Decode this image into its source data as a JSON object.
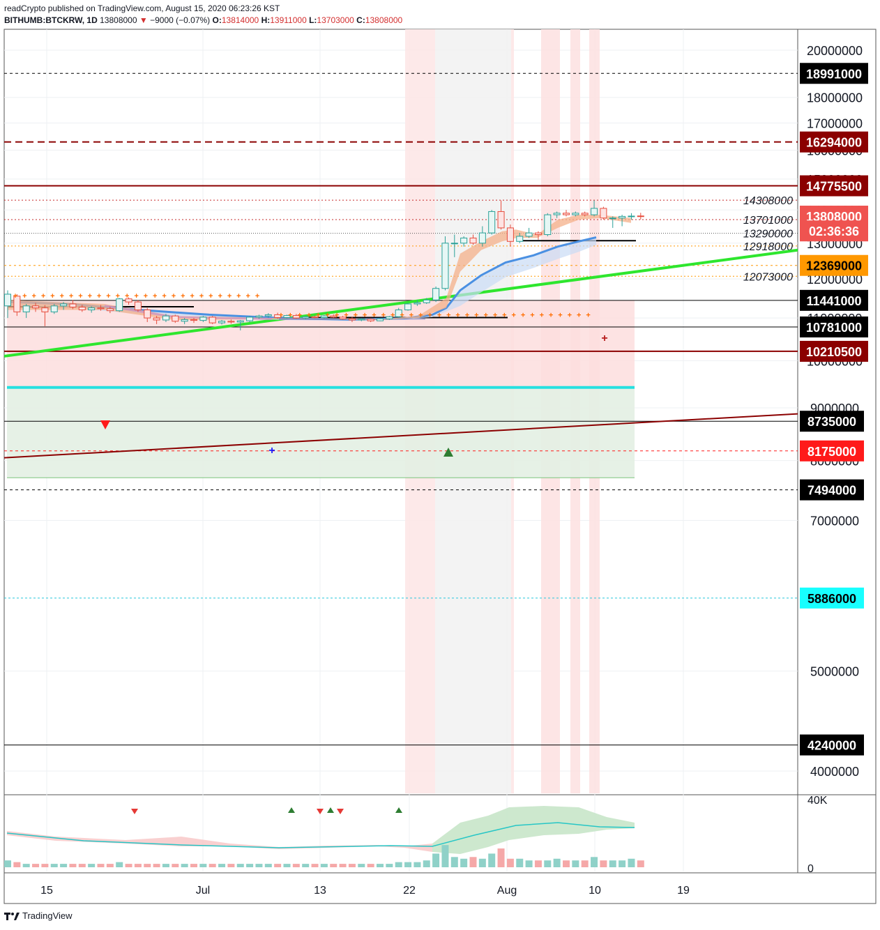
{
  "header": {
    "line1": "readCrypto published on TradingView.com, August 15, 2020 06:23:26 KST",
    "symbol": "BITHUMB:BTCKRW, 1D",
    "last": "13808000",
    "change": "−9000 (−0.07%)",
    "o_label": "O:",
    "o": "13814000",
    "h_label": "H:",
    "h": "13911000",
    "l_label": "L:",
    "l": "13703000",
    "c_label": "C:",
    "c": "13808000"
  },
  "footer": {
    "brand": "TradingView"
  },
  "colors": {
    "up": "#26a69a",
    "down": "#ef5350",
    "green_line": "#2ee62e",
    "dark_red": "#8b0000",
    "cyan": "#26e0e0",
    "orange": "#ff9800",
    "blue": "#4a90e2",
    "black": "#000000"
  },
  "chart_data": {
    "type": "candlestick",
    "x_ticks": [
      "15",
      "Jul",
      "13",
      "22",
      "Aug",
      "10",
      "19"
    ],
    "y_ticks": [
      "20000000",
      "18000000",
      "17000000",
      "16000000",
      "15000000",
      "14000000",
      "13000000",
      "12000000",
      "11000000",
      "10000000",
      "9000000",
      "8000000",
      "7000000",
      "5000000",
      "4000000"
    ],
    "ylim": [
      3500000,
      20500000
    ],
    "price_labels": [
      {
        "value": 18991000,
        "text": "18991000",
        "bg": "#000000",
        "fg": "#ffffff",
        "line": "dashed-black"
      },
      {
        "value": 16294000,
        "text": "16294000",
        "bg": "#8b0000",
        "fg": "#ffffff",
        "line": "dashed-darkred"
      },
      {
        "value": 14775500,
        "text": "14775500",
        "bg": "#8b0000",
        "fg": "#ffffff",
        "line": "solid-darkred"
      },
      {
        "value": 13808000,
        "text": "13808000",
        "bg": "#ef5350",
        "fg": "#ffffff",
        "line": "none"
      },
      {
        "value": 13360000,
        "text": "02:36:36",
        "bg": "#ef5350",
        "fg": "#ffffff",
        "line": "none"
      },
      {
        "value": 12369000,
        "text": "12369000",
        "bg": "#ff9800",
        "fg": "#000000",
        "line": "dashed-orange"
      },
      {
        "value": 11441000,
        "text": "11441000",
        "bg": "#000000",
        "fg": "#ffffff",
        "line": "solid-black"
      },
      {
        "value": 10781000,
        "text": "10781000",
        "bg": "#000000",
        "fg": "#ffffff",
        "line": "solid-black"
      },
      {
        "value": 10210500,
        "text": "10210500",
        "bg": "#8b0000",
        "fg": "#ffffff",
        "line": "solid-darkred"
      },
      {
        "value": 8735000,
        "text": "8735000",
        "bg": "#000000",
        "fg": "#ffffff",
        "line": "solid-black"
      },
      {
        "value": 8175000,
        "text": "8175000",
        "bg": "#ff1a1a",
        "fg": "#ffffff",
        "line": "dashed-red"
      },
      {
        "value": 7494000,
        "text": "7494000",
        "bg": "#000000",
        "fg": "#ffffff",
        "line": "dashed-black"
      },
      {
        "value": 5886000,
        "text": "5886000",
        "bg": "#18ffff",
        "fg": "#000000",
        "line": "dashed-cyan"
      },
      {
        "value": 4240000,
        "text": "4240000",
        "bg": "#000000",
        "fg": "#ffffff",
        "line": "solid-black"
      }
    ],
    "annotations": [
      {
        "value": 14308000,
        "text": "14308000"
      },
      {
        "value": 13701000,
        "text": "13701000"
      },
      {
        "value": 13290000,
        "text": "13290000"
      },
      {
        "value": 12918000,
        "text": "12918000"
      },
      {
        "value": 12073000,
        "text": "12073000"
      }
    ],
    "volume_axis": [
      "40K",
      "0"
    ],
    "candles": [
      {
        "o": 11300000,
        "h": 11700000,
        "l": 11000000,
        "c": 11600000
      },
      {
        "o": 11550000,
        "h": 11600000,
        "l": 11050000,
        "c": 11150000
      },
      {
        "o": 11150000,
        "h": 11350000,
        "l": 11000000,
        "c": 11300000
      },
      {
        "o": 11300000,
        "h": 11380000,
        "l": 11150000,
        "c": 11250000
      },
      {
        "o": 11250000,
        "h": 11320000,
        "l": 10800000,
        "c": 11150000
      },
      {
        "o": 11150000,
        "h": 11350000,
        "l": 11100000,
        "c": 11300000
      },
      {
        "o": 11300000,
        "h": 11400000,
        "l": 11200000,
        "c": 11350000
      },
      {
        "o": 11350000,
        "h": 11450000,
        "l": 11220000,
        "c": 11270000
      },
      {
        "o": 11270000,
        "h": 11330000,
        "l": 11150000,
        "c": 11200000
      },
      {
        "o": 11200000,
        "h": 11290000,
        "l": 11130000,
        "c": 11250000
      },
      {
        "o": 11250000,
        "h": 11320000,
        "l": 11180000,
        "c": 11230000
      },
      {
        "o": 11230000,
        "h": 11280000,
        "l": 11120000,
        "c": 11180000
      },
      {
        "o": 11180000,
        "h": 11500000,
        "l": 11150000,
        "c": 11480000
      },
      {
        "o": 11480000,
        "h": 11520000,
        "l": 11330000,
        "c": 11400000
      },
      {
        "o": 11400000,
        "h": 11450000,
        "l": 11150000,
        "c": 11200000
      },
      {
        "o": 11200000,
        "h": 11250000,
        "l": 10900000,
        "c": 11000000
      },
      {
        "o": 11000000,
        "h": 11050000,
        "l": 10850000,
        "c": 10950000
      },
      {
        "o": 10950000,
        "h": 11100000,
        "l": 10900000,
        "c": 11050000
      },
      {
        "o": 11050000,
        "h": 11080000,
        "l": 10880000,
        "c": 10920000
      },
      {
        "o": 10920000,
        "h": 11000000,
        "l": 10850000,
        "c": 10960000
      },
      {
        "o": 10960000,
        "h": 11000000,
        "l": 10880000,
        "c": 10940000
      },
      {
        "o": 10940000,
        "h": 11050000,
        "l": 10900000,
        "c": 11020000
      },
      {
        "o": 11020000,
        "h": 11050000,
        "l": 10850000,
        "c": 10880000
      },
      {
        "o": 10880000,
        "h": 10950000,
        "l": 10840000,
        "c": 10920000
      },
      {
        "o": 10920000,
        "h": 10960000,
        "l": 10860000,
        "c": 10900000
      },
      {
        "o": 10900000,
        "h": 10950000,
        "l": 10700000,
        "c": 10930000
      },
      {
        "o": 10930000,
        "h": 11050000,
        "l": 10900000,
        "c": 11020000
      },
      {
        "o": 11020000,
        "h": 11080000,
        "l": 10980000,
        "c": 11050000
      },
      {
        "o": 11050000,
        "h": 11120000,
        "l": 11000000,
        "c": 11080000
      },
      {
        "o": 11080000,
        "h": 11130000,
        "l": 10980000,
        "c": 11010000
      },
      {
        "o": 11010000,
        "h": 11080000,
        "l": 10990000,
        "c": 11060000
      },
      {
        "o": 11060000,
        "h": 11100000,
        "l": 10980000,
        "c": 11000000
      },
      {
        "o": 11000000,
        "h": 11050000,
        "l": 10970000,
        "c": 11030000
      },
      {
        "o": 11030000,
        "h": 11060000,
        "l": 10990000,
        "c": 11010000
      },
      {
        "o": 11010000,
        "h": 11070000,
        "l": 10980000,
        "c": 11050000
      },
      {
        "o": 11050000,
        "h": 11090000,
        "l": 11000000,
        "c": 11020000
      },
      {
        "o": 11020000,
        "h": 11050000,
        "l": 10950000,
        "c": 10980000
      },
      {
        "o": 10980000,
        "h": 11030000,
        "l": 10900000,
        "c": 10950000
      },
      {
        "o": 10950000,
        "h": 11000000,
        "l": 10920000,
        "c": 10970000
      },
      {
        "o": 10970000,
        "h": 11000000,
        "l": 10900000,
        "c": 10930000
      },
      {
        "o": 10930000,
        "h": 11000000,
        "l": 10920000,
        "c": 10980000
      },
      {
        "o": 10980000,
        "h": 11050000,
        "l": 10950000,
        "c": 11030000
      },
      {
        "o": 11030000,
        "h": 11250000,
        "l": 11000000,
        "c": 11200000
      },
      {
        "o": 11200000,
        "h": 11380000,
        "l": 11180000,
        "c": 11350000
      },
      {
        "o": 11350000,
        "h": 11450000,
        "l": 11300000,
        "c": 11380000
      },
      {
        "o": 11380000,
        "h": 11500000,
        "l": 11350000,
        "c": 11450000
      },
      {
        "o": 11450000,
        "h": 11800000,
        "l": 11400000,
        "c": 11750000
      },
      {
        "o": 11750000,
        "h": 13200000,
        "l": 11700000,
        "c": 13000000
      },
      {
        "o": 13000000,
        "h": 13250000,
        "l": 12600000,
        "c": 13000000
      },
      {
        "o": 13000000,
        "h": 13200000,
        "l": 12900000,
        "c": 13150000
      },
      {
        "o": 13150000,
        "h": 13250000,
        "l": 12950000,
        "c": 13000000
      },
      {
        "o": 13000000,
        "h": 13500000,
        "l": 12900000,
        "c": 13300000
      },
      {
        "o": 13300000,
        "h": 14000000,
        "l": 13250000,
        "c": 13950000
      },
      {
        "o": 13950000,
        "h": 14300000,
        "l": 13400000,
        "c": 13450000
      },
      {
        "o": 13450000,
        "h": 13550000,
        "l": 12900000,
        "c": 13050000
      },
      {
        "o": 13050000,
        "h": 13300000,
        "l": 13000000,
        "c": 13200000
      },
      {
        "o": 13200000,
        "h": 13450000,
        "l": 13150000,
        "c": 13300000
      },
      {
        "o": 13300000,
        "h": 13350000,
        "l": 13100000,
        "c": 13250000
      },
      {
        "o": 13250000,
        "h": 13900000,
        "l": 13200000,
        "c": 13850000
      },
      {
        "o": 13850000,
        "h": 13950000,
        "l": 13750000,
        "c": 13900000
      },
      {
        "o": 13900000,
        "h": 14000000,
        "l": 13800000,
        "c": 13850000
      },
      {
        "o": 13850000,
        "h": 13950000,
        "l": 13800000,
        "c": 13900000
      },
      {
        "o": 13900000,
        "h": 13950000,
        "l": 13800000,
        "c": 13850000
      },
      {
        "o": 13850000,
        "h": 14300000,
        "l": 13800000,
        "c": 14050000
      },
      {
        "o": 14050000,
        "h": 14100000,
        "l": 13700000,
        "c": 13750000
      },
      {
        "o": 13750000,
        "h": 13800000,
        "l": 13450000,
        "c": 13750000
      },
      {
        "o": 13750000,
        "h": 13850000,
        "l": 13500000,
        "c": 13800000
      },
      {
        "o": 13800000,
        "h": 13900000,
        "l": 13700000,
        "c": 13810000
      },
      {
        "o": 13814000,
        "h": 13911000,
        "l": 13703000,
        "c": 13808000
      }
    ],
    "volumes": [
      4,
      3,
      2,
      2,
      2,
      2,
      2,
      2,
      2,
      2,
      2,
      2,
      3,
      2,
      2,
      2,
      2,
      2,
      2,
      2,
      2,
      2,
      2,
      2,
      2,
      2,
      2,
      2,
      2,
      2,
      2,
      2,
      2,
      2,
      2,
      2,
      2,
      2,
      2,
      2,
      2,
      2,
      3,
      3,
      3,
      4,
      8,
      13,
      6,
      5,
      6,
      5,
      8,
      11,
      5,
      5,
      4,
      4,
      4,
      5,
      4,
      4,
      4,
      6,
      4,
      4,
      4,
      5,
      4
    ]
  }
}
